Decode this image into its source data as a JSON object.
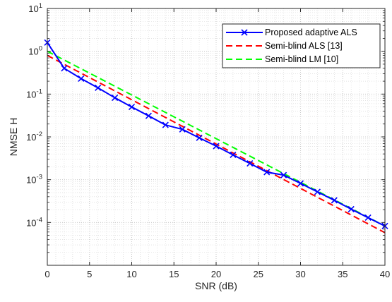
{
  "chart_data": {
    "type": "line",
    "xlabel": "SNR (dB)",
    "ylabel": "NMSE H",
    "xlim": [
      0,
      40
    ],
    "ylim": [
      1e-05,
      10
    ],
    "yscale": "log",
    "grid": true,
    "legend_position": "top-right",
    "x_ticks": [
      0,
      5,
      10,
      15,
      20,
      25,
      30,
      35,
      40
    ],
    "y_ticks": [
      {
        "value": 0.0001,
        "base": "10",
        "exp": "-4"
      },
      {
        "value": 0.001,
        "base": "10",
        "exp": "-3"
      },
      {
        "value": 0.01,
        "base": "10",
        "exp": "-2"
      },
      {
        "value": 0.1,
        "base": "10",
        "exp": "-1"
      },
      {
        "value": 1,
        "base": "10",
        "exp": "0"
      },
      {
        "value": 10,
        "base": "10",
        "exp": "1"
      }
    ],
    "series": [
      {
        "name": "Proposed adaptive ALS",
        "color": "#0000ff",
        "style": "solid",
        "marker": "x",
        "x": [
          0,
          2,
          4,
          6,
          8,
          10,
          12,
          14,
          16,
          18,
          20,
          22,
          24,
          26,
          28,
          30,
          32,
          34,
          36,
          38,
          40
        ],
        "y": [
          1.6,
          0.4,
          0.23,
          0.14,
          0.082,
          0.05,
          0.031,
          0.019,
          0.015,
          0.0095,
          0.0061,
          0.0038,
          0.0024,
          0.0015,
          0.00128,
          0.00082,
          0.00052,
          0.00033,
          0.000205,
          0.00013,
          8.26e-05
        ]
      },
      {
        "name": "Semi-blind ALS [13]",
        "color": "#ff0000",
        "style": "dashed",
        "x": [
          0,
          40
        ],
        "y": [
          0.8,
          5.78e-05
        ]
      },
      {
        "name": "Semi-blind LM [10]",
        "color": "#00ff00",
        "style": "dashed",
        "x": [
          0,
          40
        ],
        "y": [
          1.0,
          8.28e-05
        ]
      }
    ]
  }
}
